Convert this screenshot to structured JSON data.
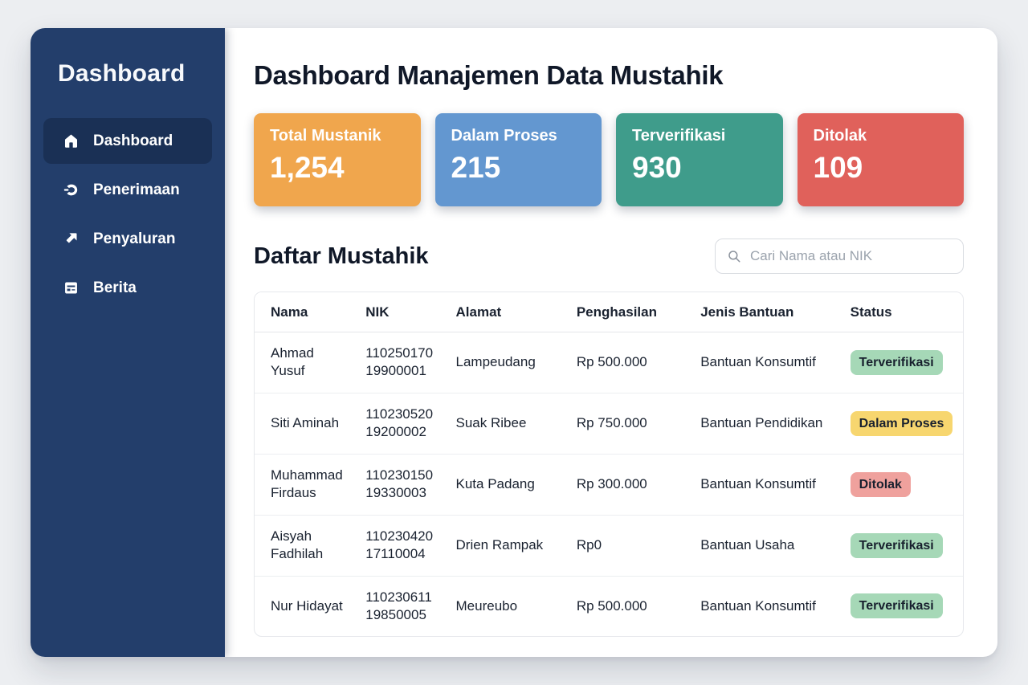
{
  "sidebar": {
    "title": "Dashboard",
    "items": [
      {
        "label": "Dashboard",
        "icon": "home-icon",
        "active": true
      },
      {
        "label": "Penerimaan",
        "icon": "receive-icon",
        "active": false
      },
      {
        "label": "Penyaluran",
        "icon": "distribute-icon",
        "active": false
      },
      {
        "label": "Berita",
        "icon": "news-icon",
        "active": false
      }
    ],
    "colors": {
      "background": "#233e6b",
      "active_item": "#1a3055"
    }
  },
  "header": {
    "title": "Dashboard Manajemen Data Mustahik"
  },
  "stats": [
    {
      "label": "Total Mustanik",
      "value": "1,254",
      "color": "#f0a64d"
    },
    {
      "label": "Dalam Proses",
      "value": "215",
      "color": "#6397d0"
    },
    {
      "label": "Terverifikasi",
      "value": "930",
      "color": "#3f9c8b"
    },
    {
      "label": "Ditolak",
      "value": "109",
      "color": "#e0615b"
    }
  ],
  "list_section": {
    "title": "Daftar Mustahik",
    "search_placeholder": "Cari Nama atau NIK"
  },
  "table": {
    "columns": [
      "Nama",
      "NIK",
      "Alamat",
      "Penghasilan",
      "Jenis Bantuan",
      "Status"
    ],
    "rows": [
      {
        "nama": "Ahmad Yusuf",
        "nik": "11025017019900001",
        "alamat": "Lampeudang",
        "penghasilan": "Rp 500.000",
        "jenis_bantuan": "Bantuan Konsumtif",
        "status": "Terverifikasi",
        "status_type": "success"
      },
      {
        "nama": "Siti Aminah",
        "nik": "11023052019200002",
        "alamat": "Suak Ribee",
        "penghasilan": "Rp 750.000",
        "jenis_bantuan": "Bantuan Pendidikan",
        "status": "Dalam Proses",
        "status_type": "warning"
      },
      {
        "nama": "Muhammad Firdaus",
        "nik": "11023015019330003",
        "alamat": "Kuta Padang",
        "penghasilan": "Rp 300.000",
        "jenis_bantuan": "Bantuan Konsumtif",
        "status": "Ditolak",
        "status_type": "danger"
      },
      {
        "nama": "Aisyah Fadhilah",
        "nik": "11023042017110004",
        "alamat": "Drien Rampak",
        "penghasilan": "Rp0",
        "jenis_bantuan": "Bantuan Usaha",
        "status": "Terverifikasi",
        "status_type": "success"
      },
      {
        "nama": "Nur Hidayat",
        "nik": "11023061119850005",
        "alamat": "Meureubo",
        "penghasilan": "Rp 500.000",
        "jenis_bantuan": "Bantuan Konsumtif",
        "status": "Terverifikasi",
        "status_type": "success"
      }
    ],
    "status_colors": {
      "success": "#a6d8b7",
      "warning": "#f7d66f",
      "danger": "#efa19d"
    }
  }
}
